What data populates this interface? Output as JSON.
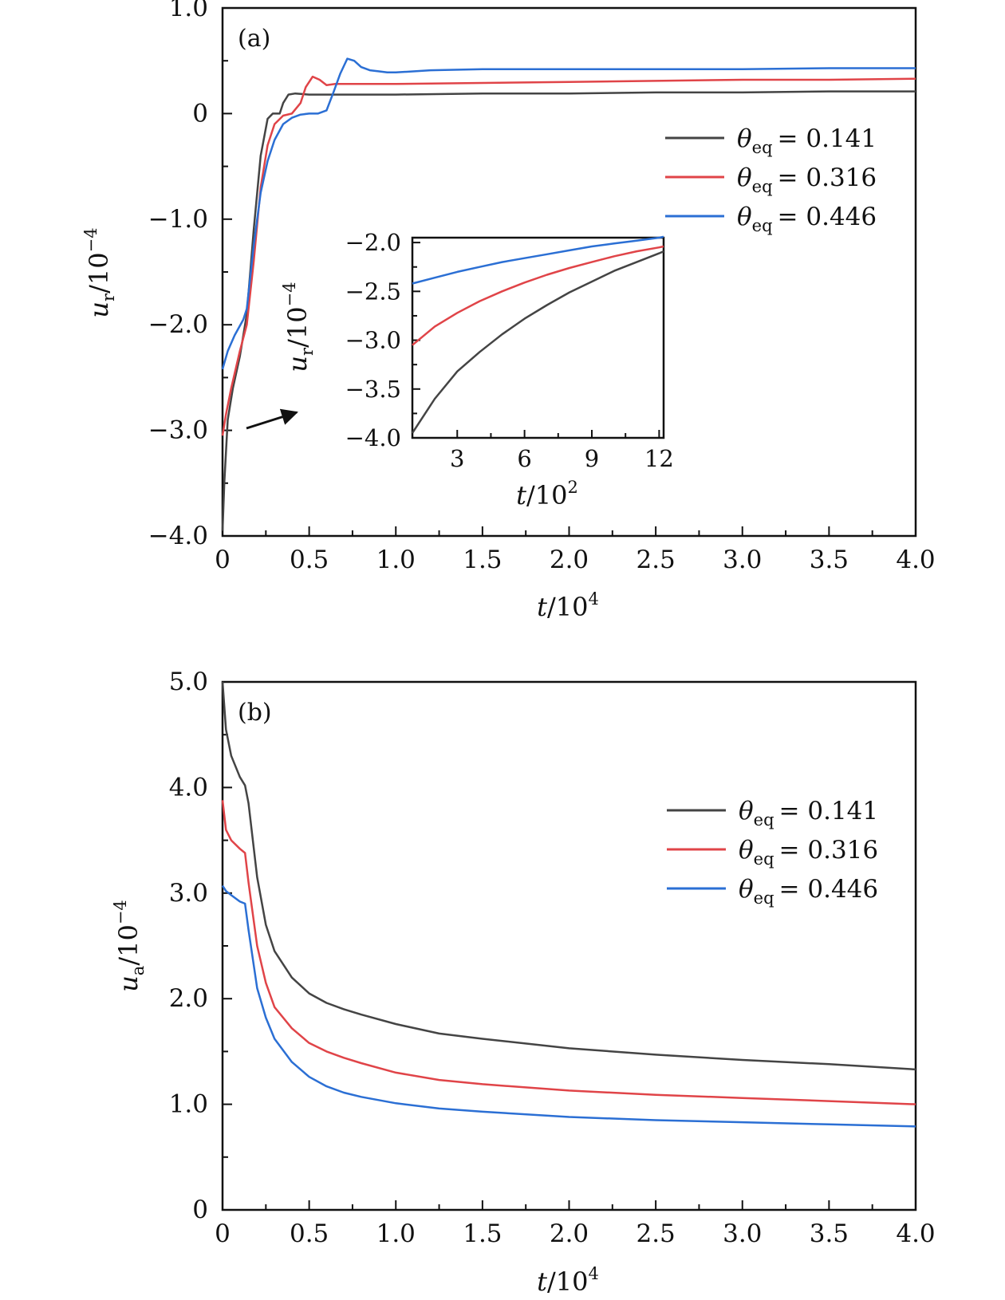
{
  "chart_data": [
    {
      "id": "panel-a",
      "type": "line",
      "panel_label": "(a)",
      "xlabel": {
        "var": "t",
        "unit": "/10",
        "exp": "4"
      },
      "ylabel": {
        "var": "u",
        "sub": "r",
        "unit": "/10",
        "exp": "−4"
      },
      "xlim": [
        0,
        4.0
      ],
      "ylim": [
        -4.0,
        1.0
      ],
      "xticks": [
        0,
        0.5,
        1.0,
        1.5,
        2.0,
        2.5,
        3.0,
        3.5,
        4.0
      ],
      "xtick_labels": [
        "0",
        "0.5",
        "1.0",
        "1.5",
        "2.0",
        "2.5",
        "3.0",
        "3.5",
        "4.0"
      ],
      "yticks": [
        -4.0,
        -3.0,
        -2.0,
        -1.0,
        0,
        1.0
      ],
      "ytick_labels": [
        "−4.0",
        "−3.0",
        "−2.0",
        "−1.0",
        "0",
        "1.0"
      ],
      "legend_position": "right",
      "series": [
        {
          "name": "θeq = 0.141",
          "sym": "θ",
          "sub": "eq",
          "value": "= 0.141",
          "color": "#444444",
          "x": [
            0,
            0.01,
            0.03,
            0.06,
            0.1,
            0.14,
            0.18,
            0.22,
            0.26,
            0.29,
            0.33,
            0.35,
            0.38,
            0.42,
            0.5,
            0.6,
            0.8,
            1.0,
            1.5,
            2.0,
            2.5,
            3.0,
            3.5,
            4.0
          ],
          "y": [
            -3.95,
            -3.5,
            -2.9,
            -2.6,
            -2.3,
            -1.9,
            -1.1,
            -0.4,
            -0.05,
            0,
            0,
            0.1,
            0.18,
            0.19,
            0.18,
            0.18,
            0.18,
            0.18,
            0.19,
            0.19,
            0.2,
            0.2,
            0.21,
            0.21
          ]
        },
        {
          "name": "θeq = 0.316",
          "sym": "θ",
          "sub": "eq",
          "value": "= 0.316",
          "color": "#e04448",
          "x": [
            0,
            0.02,
            0.05,
            0.1,
            0.14,
            0.18,
            0.22,
            0.26,
            0.3,
            0.35,
            0.4,
            0.45,
            0.48,
            0.52,
            0.56,
            0.6,
            0.65,
            0.7,
            0.8,
            1.0,
            1.5,
            2.0,
            2.5,
            3.0,
            3.5,
            4.0
          ],
          "y": [
            -3.05,
            -2.85,
            -2.6,
            -2.25,
            -2.0,
            -1.4,
            -0.7,
            -0.3,
            -0.1,
            -0.02,
            0,
            0.1,
            0.25,
            0.35,
            0.32,
            0.27,
            0.28,
            0.28,
            0.28,
            0.28,
            0.29,
            0.3,
            0.31,
            0.32,
            0.32,
            0.33
          ]
        },
        {
          "name": "θeq = 0.446",
          "sym": "θ",
          "sub": "eq",
          "value": "= 0.446",
          "color": "#2b6fd4",
          "x": [
            0,
            0.03,
            0.07,
            0.12,
            0.14,
            0.18,
            0.22,
            0.26,
            0.3,
            0.35,
            0.4,
            0.45,
            0.5,
            0.55,
            0.6,
            0.64,
            0.68,
            0.72,
            0.76,
            0.8,
            0.85,
            0.9,
            0.95,
            1.0,
            1.2,
            1.5,
            2.0,
            2.5,
            3.0,
            3.5,
            4.0
          ],
          "y": [
            -2.42,
            -2.25,
            -2.1,
            -1.95,
            -1.85,
            -1.25,
            -0.75,
            -0.45,
            -0.25,
            -0.1,
            -0.04,
            -0.01,
            0,
            0,
            0.03,
            0.2,
            0.38,
            0.52,
            0.5,
            0.44,
            0.41,
            0.4,
            0.39,
            0.39,
            0.41,
            0.42,
            0.42,
            0.42,
            0.42,
            0.43,
            0.43
          ]
        }
      ],
      "inset": {
        "xlabel": {
          "var": "t",
          "unit": "/10",
          "exp": "2"
        },
        "ylabel": {
          "var": "u",
          "sub": "r",
          "unit": "/10",
          "exp": "−4"
        },
        "xlim": [
          1,
          12.2
        ],
        "ylim": [
          -4.0,
          -1.95
        ],
        "xticks": [
          3,
          6,
          9,
          12
        ],
        "xtick_labels": [
          "3",
          "6",
          "9",
          "12"
        ],
        "yticks": [
          -4.0,
          -3.5,
          -3.0,
          -2.5,
          -2.0
        ],
        "ytick_labels": [
          "−4.0",
          "−3.5",
          "−3.0",
          "−2.5",
          "−2.0"
        ],
        "series": [
          {
            "color": "#444444",
            "x": [
              1,
              2,
              3,
              4,
              5,
              6,
              7,
              8,
              9,
              10,
              11,
              12,
              12.2
            ],
            "y": [
              -3.95,
              -3.6,
              -3.32,
              -3.12,
              -2.94,
              -2.78,
              -2.64,
              -2.51,
              -2.4,
              -2.29,
              -2.2,
              -2.11,
              -2.09
            ]
          },
          {
            "color": "#e04448",
            "x": [
              1,
              2,
              3,
              4,
              5,
              6,
              7,
              8,
              9,
              10,
              11,
              12,
              12.2
            ],
            "y": [
              -3.05,
              -2.86,
              -2.72,
              -2.6,
              -2.5,
              -2.41,
              -2.33,
              -2.26,
              -2.2,
              -2.14,
              -2.09,
              -2.05,
              -2.04
            ]
          },
          {
            "color": "#2b6fd4",
            "x": [
              1,
              2,
              3,
              4,
              5,
              6,
              7,
              8,
              9,
              10,
              11,
              12,
              12.2
            ],
            "y": [
              -2.42,
              -2.36,
              -2.3,
              -2.25,
              -2.2,
              -2.16,
              -2.12,
              -2.08,
              -2.04,
              -2.01,
              -1.98,
              -1.95,
              -1.94
            ]
          }
        ]
      }
    },
    {
      "id": "panel-b",
      "type": "line",
      "panel_label": "(b)",
      "xlabel": {
        "var": "t",
        "unit": "/10",
        "exp": "4"
      },
      "ylabel": {
        "var": "u",
        "sub": "a",
        "unit": "/10",
        "exp": "−4"
      },
      "xlim": [
        0,
        4.0
      ],
      "ylim": [
        0,
        5.0
      ],
      "xticks": [
        0,
        0.5,
        1.0,
        1.5,
        2.0,
        2.5,
        3.0,
        3.5,
        4.0
      ],
      "xtick_labels": [
        "0",
        "0.5",
        "1.0",
        "1.5",
        "2.0",
        "2.5",
        "3.0",
        "3.5",
        "4.0"
      ],
      "yticks": [
        0,
        1.0,
        2.0,
        3.0,
        4.0,
        5.0
      ],
      "ytick_labels": [
        "0",
        "1.0",
        "2.0",
        "3.0",
        "4.0",
        "5.0"
      ],
      "legend_position": "right",
      "series": [
        {
          "name": "θeq = 0.141",
          "sym": "θ",
          "sub": "eq",
          "value": "= 0.141",
          "color": "#444444",
          "x": [
            0,
            0.02,
            0.05,
            0.1,
            0.13,
            0.15,
            0.2,
            0.25,
            0.3,
            0.4,
            0.5,
            0.6,
            0.7,
            0.8,
            1.0,
            1.25,
            1.5,
            2.0,
            2.5,
            3.0,
            3.5,
            4.0
          ],
          "y": [
            5.0,
            4.55,
            4.3,
            4.1,
            4.02,
            3.85,
            3.15,
            2.7,
            2.45,
            2.2,
            2.05,
            1.96,
            1.9,
            1.85,
            1.76,
            1.67,
            1.62,
            1.53,
            1.47,
            1.42,
            1.38,
            1.33
          ]
        },
        {
          "name": "θeq = 0.316",
          "sym": "θ",
          "sub": "eq",
          "value": "= 0.316",
          "color": "#e04448",
          "x": [
            0,
            0.02,
            0.05,
            0.1,
            0.13,
            0.15,
            0.2,
            0.25,
            0.3,
            0.4,
            0.5,
            0.6,
            0.7,
            0.8,
            1.0,
            1.25,
            1.5,
            2.0,
            2.5,
            3.0,
            3.5,
            4.0
          ],
          "y": [
            3.88,
            3.6,
            3.5,
            3.42,
            3.38,
            3.1,
            2.5,
            2.15,
            1.92,
            1.72,
            1.58,
            1.5,
            1.44,
            1.39,
            1.3,
            1.23,
            1.19,
            1.13,
            1.09,
            1.06,
            1.03,
            1.0
          ]
        },
        {
          "name": "θeq = 0.446",
          "sym": "θ",
          "sub": "eq",
          "value": "= 0.446",
          "color": "#2b6fd4",
          "x": [
            0,
            0.02,
            0.05,
            0.1,
            0.13,
            0.15,
            0.2,
            0.25,
            0.3,
            0.4,
            0.5,
            0.6,
            0.7,
            0.8,
            1.0,
            1.25,
            1.5,
            2.0,
            2.5,
            3.0,
            3.5,
            4.0
          ],
          "y": [
            3.07,
            3.02,
            2.98,
            2.92,
            2.9,
            2.65,
            2.1,
            1.82,
            1.62,
            1.4,
            1.26,
            1.17,
            1.11,
            1.07,
            1.01,
            0.96,
            0.93,
            0.88,
            0.85,
            0.83,
            0.81,
            0.79
          ]
        }
      ]
    }
  ]
}
